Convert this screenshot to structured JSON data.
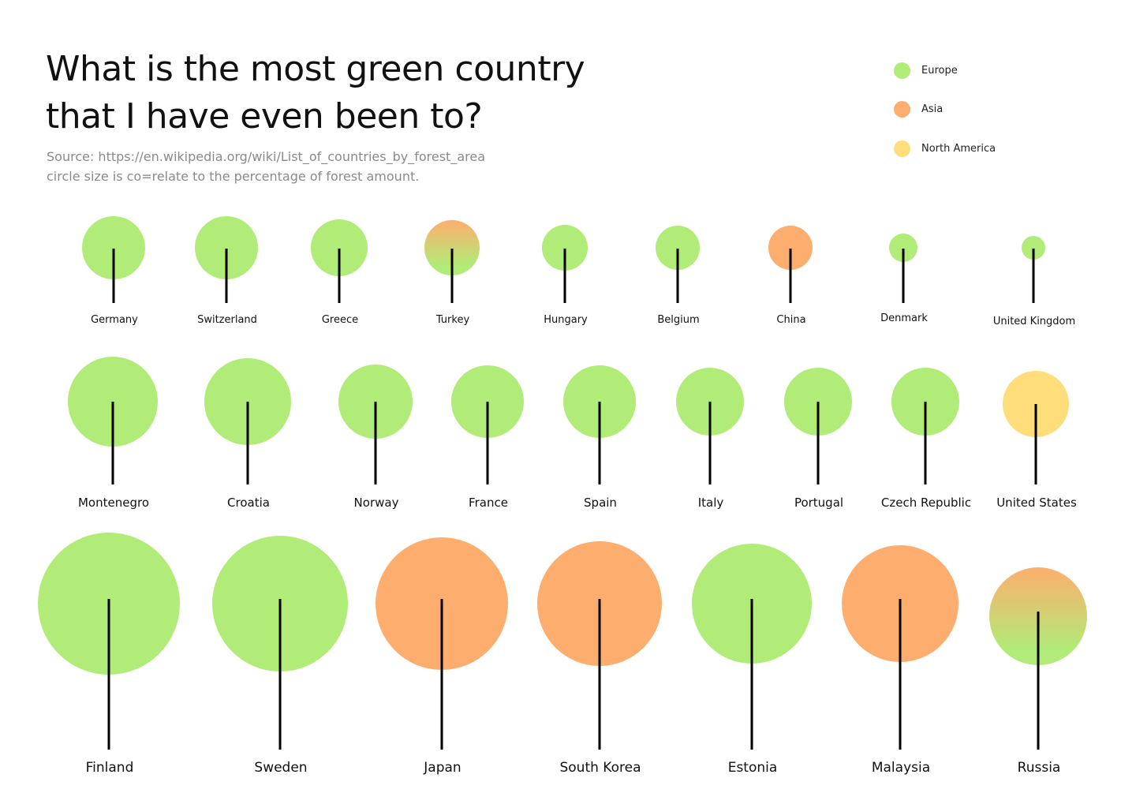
{
  "header": {
    "title_line1": "What is the most green country",
    "title_line2": "that I have even been to?",
    "source": "Source: https://en.wikipedia.org/wiki/List_of_countries_by_forest_area",
    "note": "circle size is co=relate to the percentage of forest amount."
  },
  "legend": [
    {
      "label": "Europe",
      "color": "#b0ec77"
    },
    {
      "label": "Asia",
      "color": "#fdae6e"
    },
    {
      "label": "North America",
      "color": "#fedd7a"
    }
  ],
  "colors": {
    "europe": "#b0ec77",
    "asia": "#fdae6e",
    "north_america": "#fedd7a",
    "trunk": "#000000"
  },
  "chart_data": {
    "type": "bubble",
    "encoding": "circle size = percentage of forest area; color = continent",
    "rows": [
      [
        {
          "country": "Germany",
          "region": "Europe",
          "size": 40
        },
        {
          "country": "Switzerland",
          "region": "Europe",
          "size": 40
        },
        {
          "country": "Greece",
          "region": "Europe",
          "size": 36
        },
        {
          "country": "Turkey",
          "region": "Europe/Asia",
          "size": 35
        },
        {
          "country": "Hungary",
          "region": "Europe",
          "size": 29
        },
        {
          "country": "Belgium",
          "region": "Europe",
          "size": 28
        },
        {
          "country": "China",
          "region": "Asia",
          "size": 28
        },
        {
          "country": "Denmark",
          "region": "Europe",
          "size": 18
        },
        {
          "country": "United Kingdom",
          "region": "Europe",
          "size": 15
        }
      ],
      [
        {
          "country": "Montenegro",
          "region": "Europe",
          "size": 57
        },
        {
          "country": "Croatia",
          "region": "Europe",
          "size": 55
        },
        {
          "country": "Norway",
          "region": "Europe",
          "size": 47
        },
        {
          "country": "France",
          "region": "Europe",
          "size": 46
        },
        {
          "country": "Spain",
          "region": "Europe",
          "size": 46
        },
        {
          "country": "Italy",
          "region": "Europe",
          "size": 43
        },
        {
          "country": "Portugal",
          "region": "Europe",
          "size": 43
        },
        {
          "country": "Czech Republic",
          "region": "Europe",
          "size": 43
        },
        {
          "country": "United States",
          "region": "North America",
          "size": 42
        }
      ],
      [
        {
          "country": "Finland",
          "region": "Europe",
          "size": 90
        },
        {
          "country": "Sweden",
          "region": "Europe",
          "size": 86
        },
        {
          "country": "Japan",
          "region": "Asia",
          "size": 84
        },
        {
          "country": "South Korea",
          "region": "Asia",
          "size": 79
        },
        {
          "country": "Estonia",
          "region": "Europe",
          "size": 76
        },
        {
          "country": "Malaysia",
          "region": "Asia",
          "size": 74
        },
        {
          "country": "Russia",
          "region": "Europe/Asia",
          "size": 62
        }
      ]
    ]
  }
}
